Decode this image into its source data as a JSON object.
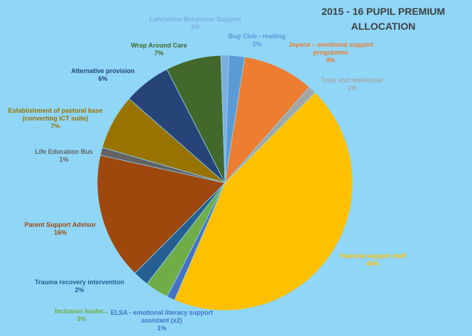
{
  "chart_data": {
    "type": "pie",
    "title": [
      "2015 - 16 PUPIL PREMIUM",
      "ALLOCATION"
    ],
    "categories": [
      "Bug Club - reading",
      "Jepeca – emotional support programme",
      "Trips and residential",
      "Pastoral support staff",
      "ELSA - emotional literacy support assistant (x2)",
      "Inclusion leader...",
      "Trauma recovery intervention",
      "Parent Support Advisor",
      "Life Education Bus",
      "Establishment of pastoral base (converting ICT suite)",
      "Alternative provision",
      "Wrap Around Care",
      "Lunchtime Behaviour Support"
    ],
    "values": [
      2,
      9,
      1,
      44,
      1,
      3,
      2,
      16,
      1,
      7,
      6,
      7,
      1
    ],
    "value_labels": [
      "2%",
      "9%",
      "1%",
      "44%",
      "1%",
      "3%",
      "2%",
      "16%",
      "1%",
      "7%",
      "6%",
      "7%",
      "1%"
    ],
    "colors": [
      "#5b9bd5",
      "#ed7d31",
      "#a5a5a5",
      "#ffc000",
      "#4472c4",
      "#70ad47",
      "#255e91",
      "#9e480e",
      "#636363",
      "#997300",
      "#264478",
      "#43682b",
      "#7cafdd"
    ]
  }
}
